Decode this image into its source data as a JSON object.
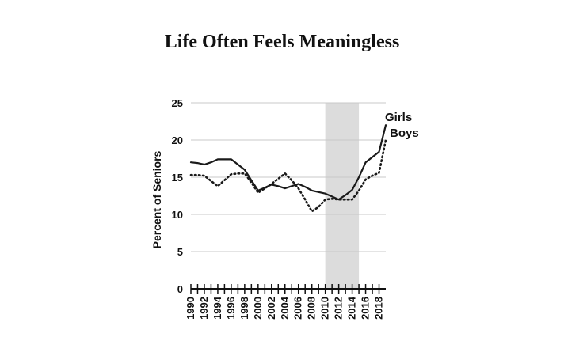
{
  "chart_data": {
    "type": "line",
    "title": "Life Often Feels Meaningless",
    "ylabel": "Percent of Seniors",
    "xlabel": "",
    "ylim": [
      0,
      25
    ],
    "yticks": [
      "0",
      "5",
      "10",
      "15",
      "20",
      "25"
    ],
    "xlim": [
      1990,
      2019
    ],
    "xtick_labels": [
      "1990",
      "1992",
      "1994",
      "1996",
      "1998",
      "2000",
      "2002",
      "2004",
      "2006",
      "2008",
      "2010",
      "2012",
      "2014",
      "2016",
      "2018"
    ],
    "shaded_region": [
      2010,
      2015
    ],
    "grid": "horizontal",
    "x": [
      1990,
      1991,
      1992,
      1993,
      1994,
      1995,
      1996,
      1997,
      1998,
      1999,
      2000,
      2001,
      2002,
      2003,
      2004,
      2005,
      2006,
      2007,
      2008,
      2009,
      2010,
      2011,
      2012,
      2013,
      2014,
      2015,
      2016,
      2017,
      2018,
      2019
    ],
    "series": [
      {
        "name": "Girls",
        "style": "solid",
        "color": "#1a1a1a",
        "values": [
          17.0,
          16.9,
          16.7,
          17.0,
          17.4,
          17.4,
          17.4,
          16.7,
          16.0,
          14.6,
          13.2,
          13.6,
          14.0,
          13.8,
          13.5,
          13.8,
          14.1,
          13.7,
          13.2,
          13.0,
          12.8,
          12.4,
          12.0,
          12.6,
          13.3,
          15.0,
          17.0,
          17.7,
          18.4,
          22.0
        ]
      },
      {
        "name": "Boys",
        "style": "dotted",
        "color": "#1a1a1a",
        "values": [
          15.3,
          15.3,
          15.2,
          14.5,
          13.8,
          14.6,
          15.4,
          15.5,
          15.5,
          14.3,
          12.9,
          13.5,
          14.1,
          14.8,
          15.5,
          14.6,
          13.5,
          12.0,
          10.4,
          11.0,
          12.0,
          12.1,
          12.0,
          12.0,
          12.0,
          13.2,
          14.7,
          15.2,
          15.6,
          20.0
        ]
      }
    ]
  }
}
